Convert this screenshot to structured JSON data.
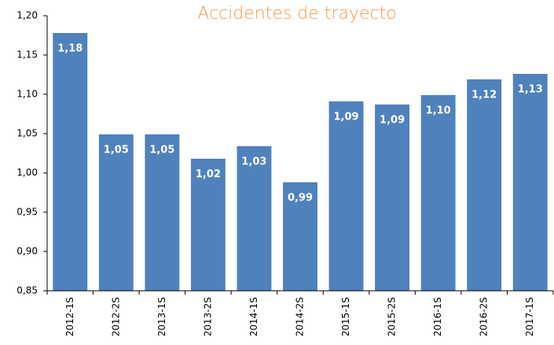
{
  "chart_data": {
    "type": "bar",
    "title": "Accidentes de trayecto",
    "categories": [
      "2012-1S",
      "2012-2S",
      "2013-1S",
      "2013-2S",
      "2014-1S",
      "2014-2S",
      "2015-1S",
      "2015-2S",
      "2016-1S",
      "2016-2S",
      "2017-1S"
    ],
    "values": [
      1.178,
      1.049,
      1.049,
      1.018,
      1.034,
      0.988,
      1.091,
      1.087,
      1.099,
      1.119,
      1.126
    ],
    "value_labels": [
      "1,18",
      "1,05",
      "1,05",
      "1,02",
      "1,03",
      "0,99",
      "1,09",
      "1,09",
      "1,10",
      "1,12",
      "1,13"
    ],
    "color": "#4f81bd",
    "ylim": [
      0.85,
      1.2
    ],
    "yticks": [
      {
        "value": 0.85,
        "label": "0,85"
      },
      {
        "value": 0.9,
        "label": "0,90"
      },
      {
        "value": 0.95,
        "label": "0,95"
      },
      {
        "value": 1.0,
        "label": "1,00"
      },
      {
        "value": 1.05,
        "label": "1,05"
      },
      {
        "value": 1.1,
        "label": "1,10"
      },
      {
        "value": 1.15,
        "label": "1,15"
      },
      {
        "value": 1.2,
        "label": "1,20"
      }
    ],
    "grid": false
  }
}
